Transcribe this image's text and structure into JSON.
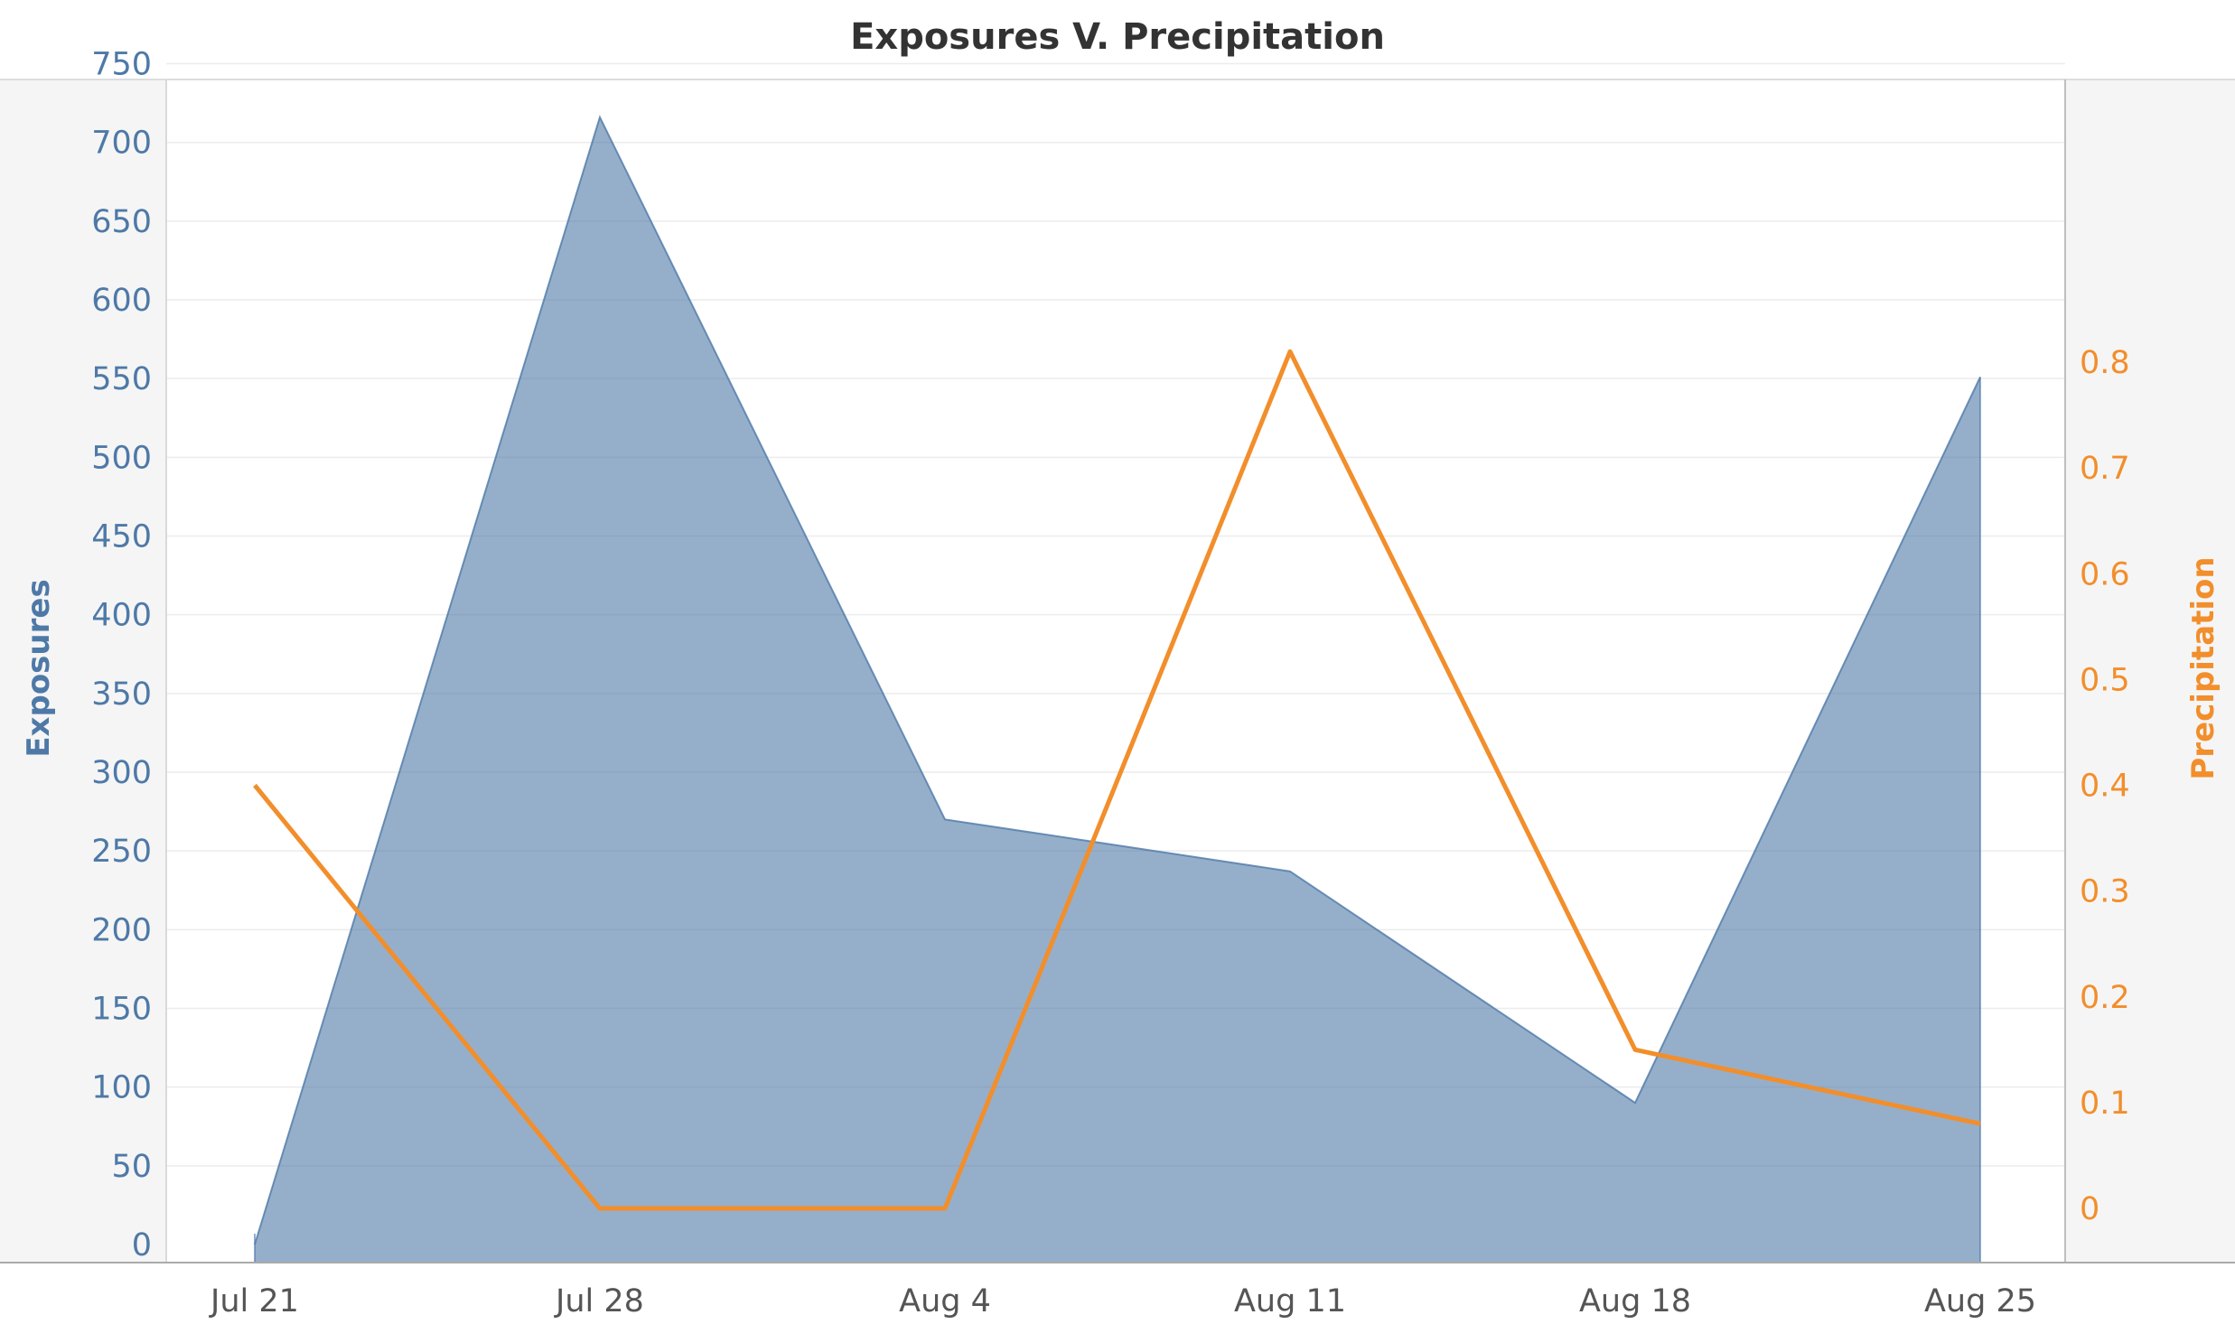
{
  "chart_data": {
    "type": "area",
    "title": "Exposures V. Precipitation",
    "categories": [
      "Jul 21",
      "Jul 28",
      "Aug 4",
      "Aug 11",
      "Aug 18",
      "Aug 25"
    ],
    "series": [
      {
        "name": "Exposures",
        "type": "area",
        "axis": "left",
        "color": "#4e79a7",
        "values": [
          0,
          716,
          270,
          237,
          90,
          551
        ]
      },
      {
        "name": "Precipitation",
        "type": "line",
        "axis": "right",
        "color": "#f28e2b",
        "values": [
          0.4,
          0.0,
          0.0,
          0.81,
          0.15,
          0.08
        ]
      }
    ],
    "y_left": {
      "label": "Exposures",
      "ticks": [
        0,
        50,
        100,
        150,
        200,
        250,
        300,
        350,
        400,
        450,
        500,
        550,
        600,
        650,
        700,
        750
      ]
    },
    "y_right": {
      "label": "Precipitation",
      "ticks": [
        0,
        0.1,
        0.2,
        0.3,
        0.4,
        0.5,
        0.6,
        0.7,
        0.8
      ],
      "tick_labels": [
        "0",
        "0.1",
        "0.2",
        "0.3",
        "0.4",
        "0.5",
        "0.6",
        "0.7",
        "0.8"
      ]
    },
    "grid": true,
    "legend": "none"
  }
}
